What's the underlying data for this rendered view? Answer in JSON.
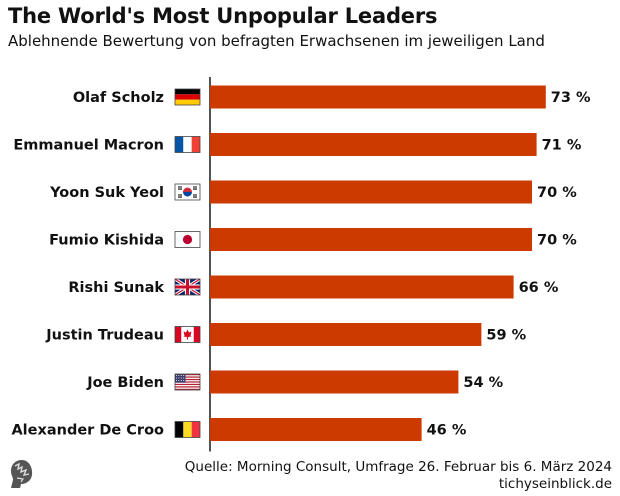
{
  "header": {
    "title": "The World's Most Unpopular Leaders",
    "subtitle": "Ablehnende Bewertung von befragten Erwachsenen im jeweiligen Land"
  },
  "footer": {
    "source": "Quelle: Morning Consult, Umfrage 26. Februar bis 6. März 2024",
    "site": "tichyseinblick.de"
  },
  "colors": {
    "bar": "#cc3a00",
    "text": "#111111"
  },
  "chart_data": {
    "type": "bar",
    "orientation": "horizontal",
    "title": "The World's Most Unpopular Leaders",
    "subtitle": "Ablehnende Bewertung von befragten Erwachsenen im jeweiligen Land",
    "xlabel": "",
    "ylabel": "",
    "xlim": [
      0,
      100
    ],
    "unit": "%",
    "categories": [
      "Olaf Scholz",
      "Emmanuel Macron",
      "Yoon Suk Yeol",
      "Fumio Kishida",
      "Rishi Sunak",
      "Justin Trudeau",
      "Joe Biden",
      "Alexander De Croo"
    ],
    "flags": [
      "germany-flag-icon",
      "france-flag-icon",
      "south-korea-flag-icon",
      "japan-flag-icon",
      "uk-flag-icon",
      "canada-flag-icon",
      "usa-flag-icon",
      "belgium-flag-icon"
    ],
    "values": [
      73,
      71,
      70,
      70,
      66,
      59,
      54,
      46
    ],
    "value_labels": [
      "73 %",
      "71 %",
      "70 %",
      "70 %",
      "66 %",
      "59 %",
      "54 %",
      "46 %"
    ]
  }
}
